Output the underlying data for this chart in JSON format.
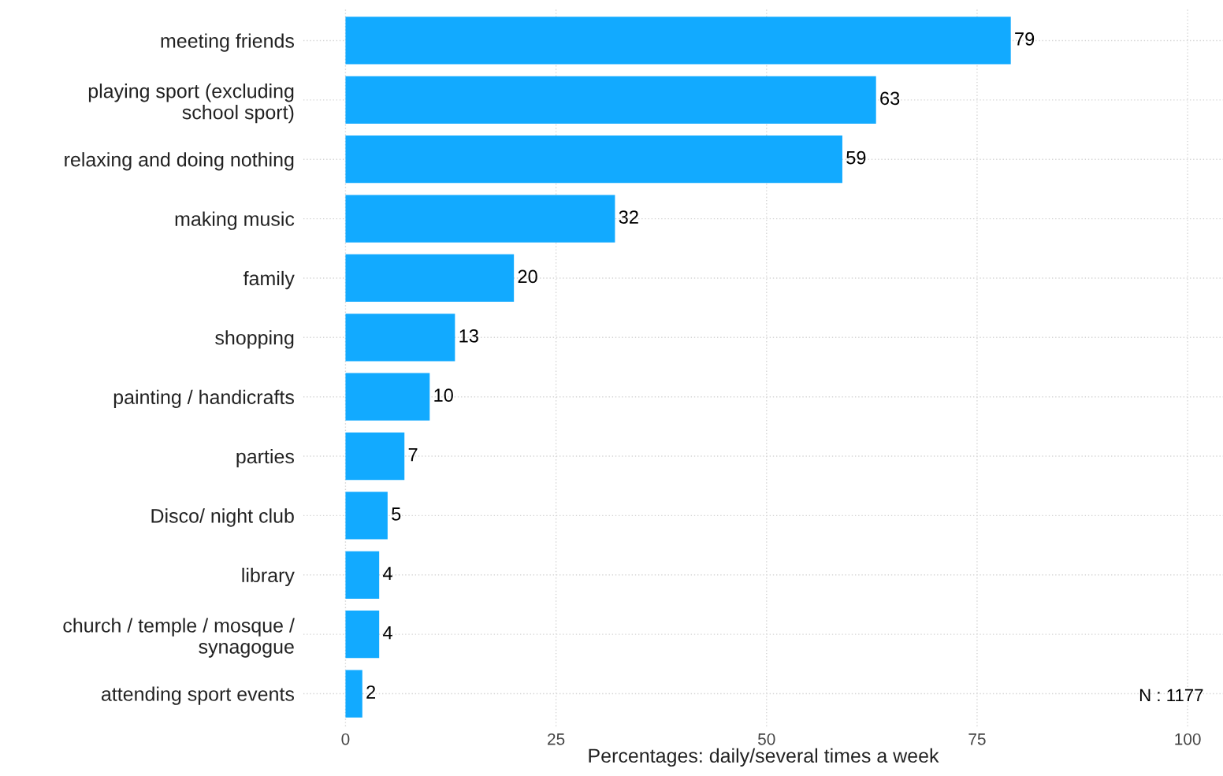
{
  "chart_data": {
    "type": "bar",
    "orientation": "horizontal",
    "xlabel": "Percentages: daily/several times a week",
    "categories": [
      "meeting friends",
      "playing sport (excluding\nschool sport)",
      "relaxing and doing nothing",
      "making music",
      "family",
      "shopping",
      "painting / handicrafts",
      "parties",
      "Disco/ night club",
      "library",
      "church / temple / mosque /\nsynagogue",
      "attending sport events"
    ],
    "values": [
      79,
      63,
      59,
      32,
      20,
      13,
      10,
      7,
      5,
      4,
      4,
      2
    ],
    "color": "#12aaff",
    "data_labels": true,
    "xlim": [
      -5,
      104.2
    ],
    "xticks": [
      0,
      25,
      50,
      75,
      100
    ],
    "grid": true,
    "annotations": [
      "N : 1177"
    ]
  }
}
